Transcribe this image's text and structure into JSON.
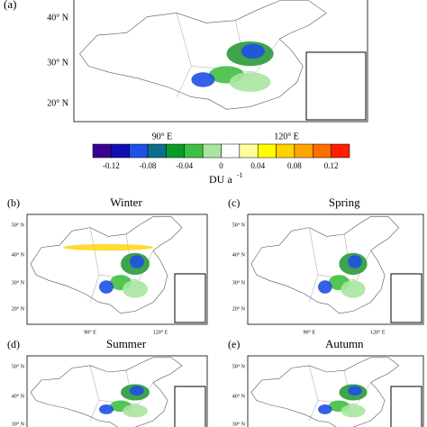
{
  "main": {
    "label": "(a)",
    "lat_labels": [
      "40° N",
      "30° N",
      "20° N"
    ],
    "lon_labels": [
      "90° E",
      "120° E"
    ]
  },
  "colorbar": {
    "colors": [
      "#3a0090",
      "#1010b0",
      "#1e50e6",
      "#0a6e8c",
      "#0a9a2a",
      "#40c040",
      "#a8e6a0",
      "#ffffff",
      "#ffff9c",
      "#ffff00",
      "#ffd200",
      "#ffa500",
      "#ff6e00",
      "#ff1e00"
    ],
    "ticks": [
      -0.12,
      -0.08,
      -0.04,
      0,
      0.04,
      0.08,
      0.12
    ],
    "unit": "DU a",
    "unit_exp": "-1"
  },
  "panels": [
    {
      "label": "(b)",
      "title": "Winter",
      "lat_labels": [
        "50° N",
        "40° N",
        "30° N",
        "20° N"
      ],
      "lon_labels": [
        "90° E",
        "120° E"
      ]
    },
    {
      "label": "(c)",
      "title": "Spring",
      "lat_labels": [
        "50° N",
        "40° N",
        "30° N",
        "20° N"
      ],
      "lon_labels": [
        "90° E",
        "120° E"
      ]
    },
    {
      "label": "(d)",
      "title": "Summer",
      "lat_labels": [
        "50° N",
        "40° N",
        "30° N"
      ]
    },
    {
      "label": "(e)",
      "title": "Autumn",
      "lat_labels": [
        "50° N",
        "40° N",
        "30° N"
      ]
    }
  ]
}
